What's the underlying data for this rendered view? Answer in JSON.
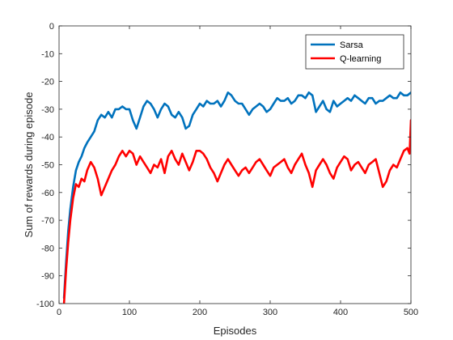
{
  "chart_data": {
    "type": "line",
    "xlabel": "Episodes",
    "ylabel": "Sum of rewards during episode",
    "xlim": [
      0,
      500
    ],
    "ylim": [
      -100,
      0
    ],
    "xticks": [
      0,
      100,
      200,
      300,
      400,
      500
    ],
    "yticks": [
      0,
      -10,
      -20,
      -30,
      -40,
      -50,
      -60,
      -70,
      -80,
      -90,
      -100
    ],
    "grid": false,
    "legend_position": "top-right",
    "series": [
      {
        "name": "Sarsa",
        "color": "#0072BD",
        "x": [
          7,
          10,
          13,
          16,
          20,
          24,
          28,
          32,
          36,
          40,
          45,
          50,
          55,
          60,
          65,
          70,
          75,
          80,
          85,
          90,
          95,
          100,
          105,
          110,
          115,
          120,
          125,
          130,
          135,
          140,
          145,
          150,
          155,
          160,
          165,
          170,
          175,
          180,
          185,
          190,
          195,
          200,
          205,
          210,
          215,
          220,
          225,
          230,
          235,
          240,
          245,
          250,
          255,
          260,
          265,
          270,
          275,
          280,
          285,
          290,
          295,
          300,
          305,
          310,
          315,
          320,
          325,
          330,
          335,
          340,
          345,
          350,
          355,
          360,
          365,
          370,
          375,
          380,
          385,
          390,
          395,
          400,
          405,
          410,
          415,
          420,
          425,
          430,
          435,
          440,
          445,
          450,
          455,
          460,
          465,
          470,
          475,
          480,
          485,
          490,
          495,
          500
        ],
        "values": [
          -98,
          -85,
          -74,
          -66,
          -58,
          -52,
          -49,
          -47,
          -44,
          -42,
          -40,
          -38,
          -34,
          -32,
          -33,
          -31,
          -33,
          -30,
          -30,
          -29,
          -30,
          -30,
          -34,
          -37,
          -33,
          -29,
          -27,
          -28,
          -30,
          -33,
          -30,
          -28,
          -29,
          -32,
          -33,
          -31,
          -33,
          -37,
          -36,
          -32,
          -30,
          -28,
          -29,
          -27,
          -28,
          -28,
          -27,
          -29,
          -27,
          -24,
          -25,
          -27,
          -28,
          -28,
          -30,
          -32,
          -30,
          -29,
          -28,
          -29,
          -31,
          -30,
          -28,
          -26,
          -27,
          -27,
          -26,
          -28,
          -27,
          -25,
          -25,
          -26,
          -24,
          -25,
          -31,
          -29,
          -27,
          -30,
          -31,
          -27,
          -29,
          -28,
          -27,
          -26,
          -27,
          -25,
          -26,
          -27,
          -28,
          -26,
          -26,
          -28,
          -27,
          -27,
          -26,
          -25,
          -26,
          -26,
          -24,
          -25,
          -25,
          -24
        ]
      },
      {
        "name": "Q-learning",
        "color": "#FF0000",
        "x": [
          7,
          10,
          13,
          16,
          20,
          24,
          28,
          32,
          36,
          40,
          45,
          50,
          55,
          60,
          65,
          70,
          75,
          80,
          85,
          90,
          95,
          100,
          105,
          110,
          115,
          120,
          125,
          130,
          135,
          140,
          145,
          150,
          155,
          160,
          165,
          170,
          175,
          180,
          185,
          190,
          195,
          200,
          205,
          210,
          215,
          220,
          225,
          230,
          235,
          240,
          245,
          250,
          255,
          260,
          265,
          270,
          275,
          280,
          285,
          290,
          295,
          300,
          305,
          310,
          315,
          320,
          325,
          330,
          335,
          340,
          345,
          350,
          355,
          360,
          365,
          370,
          375,
          380,
          385,
          390,
          395,
          400,
          405,
          410,
          415,
          420,
          425,
          430,
          435,
          440,
          445,
          450,
          455,
          460,
          465,
          470,
          475,
          480,
          485,
          490,
          495,
          498,
          500
        ],
        "values": [
          -100,
          -88,
          -78,
          -70,
          -62,
          -57,
          -58,
          -55,
          -56,
          -52,
          -49,
          -51,
          -55,
          -61,
          -58,
          -55,
          -52,
          -50,
          -47,
          -45,
          -47,
          -45,
          -46,
          -50,
          -47,
          -49,
          -51,
          -53,
          -50,
          -51,
          -48,
          -53,
          -47,
          -45,
          -48,
          -50,
          -46,
          -49,
          -52,
          -49,
          -45,
          -45,
          -46,
          -48,
          -51,
          -53,
          -56,
          -53,
          -50,
          -48,
          -50,
          -52,
          -54,
          -52,
          -51,
          -53,
          -51,
          -49,
          -48,
          -50,
          -52,
          -54,
          -51,
          -50,
          -49,
          -48,
          -51,
          -53,
          -50,
          -48,
          -46,
          -50,
          -53,
          -58,
          -52,
          -50,
          -48,
          -50,
          -53,
          -55,
          -51,
          -49,
          -47,
          -48,
          -52,
          -50,
          -49,
          -51,
          -53,
          -50,
          -49,
          -48,
          -53,
          -58,
          -56,
          -52,
          -50,
          -51,
          -48,
          -45,
          -44,
          -46,
          -34
        ]
      }
    ]
  }
}
